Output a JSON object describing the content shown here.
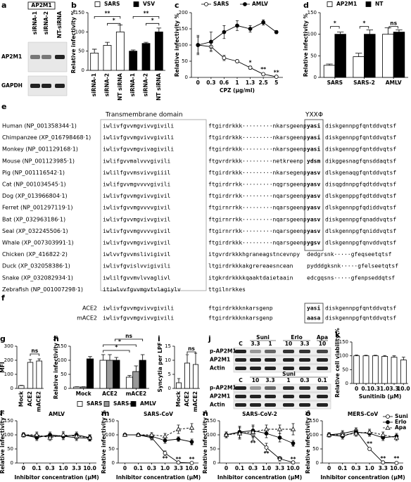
{
  "chart_data": [
    {
      "type": "bar",
      "panel": "b",
      "ylabel": "Relative infectivity %",
      "categories": [
        "siRNA-1",
        "siRNA-2",
        "NT siRNA",
        "siRNA-1",
        "siRNA-2",
        "NT siRNA"
      ],
      "series": [
        {
          "name": "SARS",
          "color": "#ffffff",
          "values": [
            45,
            65,
            100,
            null,
            null,
            null
          ],
          "errors": [
            10,
            8,
            18,
            null,
            null,
            null
          ]
        },
        {
          "name": "VSV",
          "color": "#000000",
          "values": [
            null,
            null,
            null,
            50,
            70,
            100
          ],
          "errors": [
            null,
            null,
            null,
            3,
            3,
            10
          ]
        }
      ],
      "ylim": [
        0,
        150
      ],
      "yticks": [
        0,
        50,
        100,
        150
      ],
      "annotations": [
        "**",
        "*",
        "**",
        "*"
      ]
    },
    {
      "type": "line",
      "panel": "c",
      "xlabel": "CPZ (μg/ml)",
      "ylabel": "Relative infectivity %",
      "categories": [
        "0",
        "0.3",
        "0.6",
        "1",
        "1.3",
        "2.5",
        "5"
      ],
      "series": [
        {
          "name": "SARS",
          "color": "#ffffff",
          "marker": "circle",
          "values": [
            100,
            95,
            60,
            50,
            30,
            10,
            2
          ],
          "errors": [
            30,
            12,
            8,
            5,
            5,
            3,
            1
          ]
        },
        {
          "name": "AMLV",
          "color": "#000000",
          "marker": "circle",
          "values": [
            100,
            110,
            140,
            160,
            150,
            170,
            140
          ],
          "errors": [
            25,
            30,
            20,
            15,
            10,
            8,
            5
          ]
        }
      ],
      "ylim": [
        0,
        200
      ],
      "yticks": [
        0,
        50,
        100,
        150,
        200
      ],
      "annotations": [
        "*",
        "**",
        "**"
      ]
    },
    {
      "type": "bar",
      "panel": "d",
      "ylabel": "Relative infectivity %",
      "categories": [
        "SARS",
        "SARS-2",
        "AMLV"
      ],
      "series": [
        {
          "name": "AP2M1",
          "color": "#ffffff",
          "values": [
            28,
            48,
            100
          ],
          "errors": [
            3,
            8,
            15
          ]
        },
        {
          "name": "NT",
          "color": "#000000",
          "values": [
            100,
            100,
            105
          ],
          "errors": [
            5,
            10,
            5
          ]
        }
      ],
      "ylim": [
        0,
        150
      ],
      "yticks": [
        0,
        50,
        100,
        150
      ],
      "annotations": [
        "*",
        "*",
        "ns"
      ]
    },
    {
      "type": "bar",
      "panel": "g",
      "ylabel": "MFI",
      "categories": [
        "Mock",
        "ACE2",
        "mACE2"
      ],
      "values": [
        20,
        185,
        195
      ],
      "errors": [
        2,
        20,
        15
      ],
      "color": "#ffffff",
      "ylim": [
        0,
        300
      ],
      "yticks": [
        0,
        100,
        200,
        300
      ],
      "annotations": [
        "ns"
      ]
    },
    {
      "type": "bar",
      "panel": "h",
      "ylabel": "Relative infectivity %",
      "categories": [
        "Mock",
        "ACE2",
        "mACE2"
      ],
      "series": [
        {
          "name": "SARS",
          "color": "#ffffff",
          "values": [
            5,
            100,
            40
          ],
          "errors": [
            1,
            20,
            6
          ]
        },
        {
          "name": "SARS-2",
          "color": "#999999",
          "values": [
            5,
            100,
            60
          ],
          "errors": [
            1,
            20,
            20
          ]
        },
        {
          "name": "AMLV",
          "color": "#000000",
          "values": [
            105,
            100,
            100
          ],
          "errors": [
            8,
            10,
            20
          ]
        }
      ],
      "ylim": [
        0,
        150
      ],
      "yticks": [
        0,
        50,
        100,
        150
      ],
      "annotations": [
        "ns",
        "*",
        "*"
      ]
    },
    {
      "type": "bar",
      "panel": "i",
      "ylabel": "Syncytia per LPF",
      "categories": [
        "Mock",
        "ACE2",
        "mACE2"
      ],
      "values": [
        2,
        9,
        8.5
      ],
      "errors": [
        1.5,
        3,
        4
      ],
      "color": "#ffffff",
      "ylim": [
        0,
        15
      ],
      "yticks": [
        0,
        5,
        10,
        15
      ],
      "annotations": [
        "ns"
      ]
    },
    {
      "type": "bar",
      "panel": "k",
      "ylabel": "Relative cell viability %",
      "xlabel": "Sunitinib (μM)",
      "categories": [
        "0",
        "0.1",
        "0.3",
        "1.0",
        "3.3",
        "10.0"
      ],
      "values": [
        100,
        100,
        100,
        98,
        95,
        85
      ],
      "errors": [
        3,
        2,
        2,
        3,
        5,
        10
      ],
      "color": "#ffffff",
      "ylim": [
        0,
        150
      ],
      "yticks": [
        0,
        50,
        100,
        150
      ]
    },
    {
      "type": "line",
      "panel": "l",
      "title": "AMLV",
      "xlabel": "Inhibitor concentration (μM)",
      "ylabel": "Relative infectivity %",
      "categories": [
        "0",
        "0.1",
        "0.3",
        "1.0",
        "3.3",
        "10.0"
      ],
      "series": [
        {
          "color": "#ffffff",
          "marker": "circle",
          "values": [
            100,
            95,
            95,
            95,
            90,
            88
          ],
          "errors": [
            8,
            10,
            10,
            12,
            10,
            10
          ]
        },
        {
          "color": "#000000",
          "marker": "circle",
          "values": [
            100,
            90,
            100,
            95,
            100,
            90
          ],
          "errors": [
            8,
            10,
            10,
            12,
            10,
            10
          ]
        },
        {
          "color": "#ffffff",
          "marker": "triangle",
          "dashed": true,
          "values": [
            100,
            100,
            90,
            100,
            95,
            90
          ],
          "errors": [
            8,
            10,
            10,
            12,
            10,
            10
          ]
        }
      ],
      "ylim": [
        0,
        150
      ],
      "yticks": [
        0,
        50,
        100,
        150
      ]
    },
    {
      "type": "line",
      "panel": "m",
      "title": "SARS-CoV",
      "xlabel": "Inhibitor concentration (μM)",
      "ylabel": "Relative infectivity %",
      "categories": [
        "0",
        "0.1",
        "0.3",
        "1.0",
        "3.3",
        "10.0"
      ],
      "series": [
        {
          "color": "#ffffff",
          "marker": "circle",
          "values": [
            100,
            100,
            90,
            35,
            2,
            0
          ],
          "errors": [
            5,
            5,
            8,
            8,
            1,
            1
          ]
        },
        {
          "color": "#000000",
          "marker": "circle",
          "values": [
            100,
            100,
            95,
            80,
            85,
            75
          ],
          "errors": [
            5,
            5,
            8,
            10,
            8,
            10
          ]
        },
        {
          "color": "#ffffff",
          "marker": "triangle",
          "dashed": true,
          "values": [
            100,
            100,
            100,
            95,
            120,
            125
          ],
          "errors": [
            5,
            5,
            8,
            10,
            15,
            15
          ]
        }
      ],
      "ylim": [
        0,
        150
      ],
      "yticks": [
        0,
        50,
        100,
        150
      ],
      "annotations": [
        "**",
        "**",
        "**",
        "*"
      ]
    },
    {
      "type": "line",
      "panel": "n",
      "title": "SARS-CoV-2",
      "xlabel": "Inhibitor concentration (μM)",
      "ylabel": "Relative infectivity %",
      "categories": [
        "0",
        "0.1",
        "0.3",
        "1.0",
        "3.3",
        "10.0"
      ],
      "series": [
        {
          "color": "#ffffff",
          "marker": "circle",
          "values": [
            100,
            110,
            100,
            55,
            15,
            2
          ],
          "errors": [
            10,
            20,
            20,
            15,
            8,
            2
          ]
        },
        {
          "color": "#000000",
          "marker": "circle",
          "values": [
            100,
            110,
            115,
            105,
            90,
            70
          ],
          "errors": [
            10,
            20,
            20,
            15,
            15,
            10
          ]
        },
        {
          "color": "#ffffff",
          "marker": "triangle",
          "dashed": true,
          "values": [
            100,
            105,
            110,
            120,
            120,
            120
          ],
          "errors": [
            10,
            20,
            20,
            15,
            15,
            20
          ]
        }
      ],
      "ylim": [
        0,
        150
      ],
      "yticks": [
        0,
        50,
        100,
        150
      ],
      "annotations": [
        "**",
        "**",
        "**",
        "**",
        "*"
      ]
    },
    {
      "type": "line",
      "panel": "o",
      "title": "MERS-CoV",
      "xlabel": "Inhibitor concentration (μM)",
      "ylabel": "Relative infectivity %",
      "categories": [
        "0",
        "0.1",
        "0.3",
        "1.0",
        "3.3",
        "10.0"
      ],
      "series": [
        {
          "name": "Suni",
          "color": "#ffffff",
          "marker": "circle",
          "values": [
            100,
            105,
            115,
            50,
            2,
            0
          ],
          "errors": [
            8,
            10,
            10,
            5,
            1,
            1
          ]
        },
        {
          "name": "Erlo",
          "color": "#000000",
          "marker": "circle",
          "values": [
            100,
            95,
            110,
            105,
            90,
            95
          ],
          "errors": [
            8,
            10,
            10,
            10,
            10,
            10
          ]
        },
        {
          "name": "Apa",
          "color": "#ffffff",
          "marker": "triangle",
          "dashed": true,
          "values": [
            100,
            100,
            105,
            110,
            100,
            90
          ],
          "errors": [
            8,
            10,
            10,
            10,
            10,
            10
          ]
        }
      ],
      "ylim": [
        0,
        150
      ],
      "yticks": [
        0,
        50,
        100,
        150
      ],
      "annotations": [
        "**",
        "**",
        "**"
      ]
    }
  ],
  "figure_a": {
    "panel": "a",
    "header": "AP2M1",
    "lanes": [
      "siRNA-1",
      "siRNA-2",
      "NT-siRNA"
    ],
    "rows": [
      "AP2M1",
      "GAPDH"
    ]
  },
  "figure_j": {
    "panel": "j",
    "blots": [
      {
        "groups": [
          "Suni",
          "Erlo",
          "Apa"
        ],
        "lanes": [
          "C",
          "3.3",
          "1",
          "10",
          "3.3",
          "10"
        ],
        "rows": [
          "p-AP2M1",
          "AP2M1",
          "Actin"
        ]
      },
      {
        "groups": [
          "Suni"
        ],
        "lanes": [
          "C",
          "10",
          "3.3",
          "1",
          "0.3",
          "0.1"
        ],
        "rows": [
          "p-AP2M1",
          "AP2M1",
          "Actin"
        ]
      }
    ]
  },
  "alignment_e": {
    "panel": "e",
    "domain_label": "Transmembrane domain",
    "motif_label": "YXXΦ",
    "rows": [
      {
        "name": "Human (NP_001358344·1)",
        "tm": "iwlivfgvvmgvivvgivili",
        "mid": "ftgirdrkkk·········nkarsgeenp",
        "motif": "yasi",
        "tail": "diskgennpgfqntddvqtsf"
      },
      {
        "name": "Chimpanzee (XP_016798468·1)",
        "tm": "iwlivfgvvmgvivvgivili",
        "mid": "ftgirdrkkk·········nkarsgeenp",
        "motif": "yasi",
        "tail": "diskgennpgfqntddvqtsf"
      },
      {
        "name": "Monkey (NP_001129168·1)",
        "tm": "iwlivfgvvmgvivagivili",
        "mid": "ftgirdrkkk·········nkarsgeenp",
        "motif": "yasi",
        "tail": "diskgennpgfqntddvqtsf"
      },
      {
        "name": "Mouse (NP_001123985·1)",
        "tm": "iwlifgvvmalvvvgivili",
        "mid": "ftgvrdrkkk·········netkreenp",
        "motif": "ydsm",
        "tail": "dikggesnagfqnsddaqtsf"
      },
      {
        "name": "Pig (NP_001116542·1)",
        "tm": "iwlilfgvvmsvivvgiiil",
        "mid": "ftgirdrkkk·········nkarsegenp",
        "motif": "yasv",
        "tail": "dlskgenaqgfqntddvqtsf"
      },
      {
        "name": "Cat (NP_001034545·1)",
        "tm": "iwlifgvvmgvvvvgivili",
        "mid": "ftgirdrrkk·········nqgrsgeenp",
        "motif": "yasv",
        "tail": "disqgdnnpgfqdtddvqtsf"
      },
      {
        "name": "Dog (XP_013966804·1)",
        "tm": "iwlivfgvvmgvivvgivil",
        "mid": "ftgirdrrkk·········nqarsgeenp",
        "motif": "yasv",
        "tail": "dlskgenppgfqdtddvqtsf"
      },
      {
        "name": "Ferret (NP_001297119·1)",
        "tm": "iwlivfgvvmgvvvvgivil",
        "mid": "ftgirnrrkk·········nqarsgeenp",
        "motif": "yasv",
        "tail": "dlskgennpgfqdiddvqtsf"
      },
      {
        "name": "Bat (XP_032963186·1)",
        "tm": "iwlivfgvvmgvivvgivil",
        "mid": "ftgirnrrkk·········nqarsgeenp",
        "motif": "yasv",
        "tail": "diskgennpgfqnaddvqtsf"
      },
      {
        "name": "Seal (XP_032245506·1)",
        "tm": "iwlivfgvvmgvvvvgivil",
        "mid": "ftgirnrrkk·········nqarsgeenp",
        "motif": "yasv",
        "tail": "dlskgennpgfqniddvqtsf"
      },
      {
        "name": "Whale (XP_007303991·1)",
        "tm": "iwlivfgvvmgvivvgivil",
        "mid": "ftgirdrkkk·········nqarsgeenp",
        "motif": "ygsv",
        "tail": "dlskgennpgfqnvddvqtsf"
      },
      {
        "name": "Chicken (XP_416822·2)",
        "tm": "iwlvvfgvvmslivigivil",
        "mid": "itgvrdrkkkhgraneagstncevnpy",
        "tail": "dedgrsnk·····gfeqseetqtsf"
      },
      {
        "name": "Duck (XP_032058386·1)",
        "tm": "iwlivfgvislvvigivili",
        "mid": "ltgirdrkkkakgrereaesncean",
        "tail": "pydddgksnk·····gfelseetqtsf"
      },
      {
        "name": "Snake (XP_032082934·1)",
        "tm": "iwlilfgvvmvlvvaglivl",
        "mid": "itgkrdrkkkkqaaktdaietaain",
        "tail": "edcgqsns·····gfenpseddqtsf"
      },
      {
        "name": "Zebrafish (NP_001007298·1)",
        "tm": "itiwlvvfgvvmgvtvlagiylv",
        "mid": "ttgilnrkkes"
      }
    ]
  },
  "alignment_f": {
    "panel": "f",
    "rows": [
      {
        "name": "ACE2",
        "tm": "iwlivfgvvmgvivvgivili",
        "mid": "ftgirdrkkknkarsgenp",
        "motif": "yasi",
        "tail": "diskgennpgfqntddvqtsf"
      },
      {
        "name": "mACE2",
        "tm": "iwlivfgvvmgvivvgivili",
        "mid": "ftgirdrkkknkarsgenp",
        "motif": "aasa",
        "tail": "diskgennpgfqntddvqtsf"
      }
    ]
  }
}
